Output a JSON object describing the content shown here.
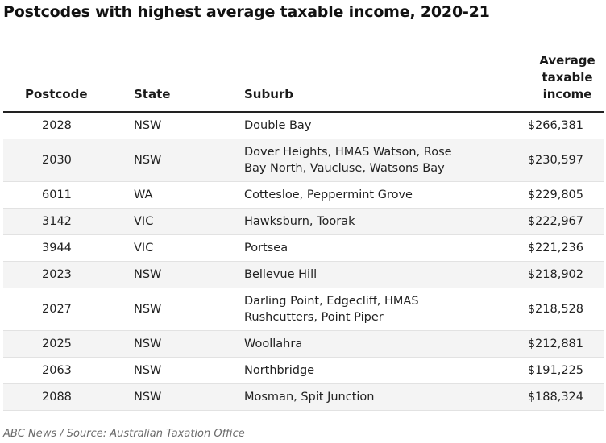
{
  "title": "Postcodes with highest average taxable income, 2020-21",
  "headers": {
    "postcode": "Postcode",
    "state": "State",
    "suburb": "Suburb",
    "income_line1": "Average",
    "income_line2": "taxable",
    "income_line3": "income"
  },
  "rows": [
    {
      "postcode": "2028",
      "state": "NSW",
      "suburb": "Double Bay",
      "income": "$266,381"
    },
    {
      "postcode": "2030",
      "state": "NSW",
      "suburb_line1": "Dover Heights, HMAS Watson, Rose",
      "suburb_line2": "Bay North, Vaucluse, Watsons Bay",
      "income": "$230,597"
    },
    {
      "postcode": "6011",
      "state": "WA",
      "suburb": "Cottesloe, Peppermint Grove",
      "income": "$229,805"
    },
    {
      "postcode": "3142",
      "state": "VIC",
      "suburb": "Hawksburn, Toorak",
      "income": "$222,967"
    },
    {
      "postcode": "3944",
      "state": "VIC",
      "suburb": "Portsea",
      "income": "$221,236"
    },
    {
      "postcode": "2023",
      "state": "NSW",
      "suburb": "Bellevue Hill",
      "income": "$218,902"
    },
    {
      "postcode": "2027",
      "state": "NSW",
      "suburb_line1": "Darling Point, Edgecliff, HMAS",
      "suburb_line2": "Rushcutters, Point Piper",
      "income": "$218,528"
    },
    {
      "postcode": "2025",
      "state": "NSW",
      "suburb": "Woollahra",
      "income": "$212,881"
    },
    {
      "postcode": "2063",
      "state": "NSW",
      "suburb": "Northbridge",
      "income": "$191,225"
    },
    {
      "postcode": "2088",
      "state": "NSW",
      "suburb": "Mosman, Spit Junction",
      "income": "$188,324"
    }
  ],
  "source": "ABC News / Source: Australian Taxation Office"
}
